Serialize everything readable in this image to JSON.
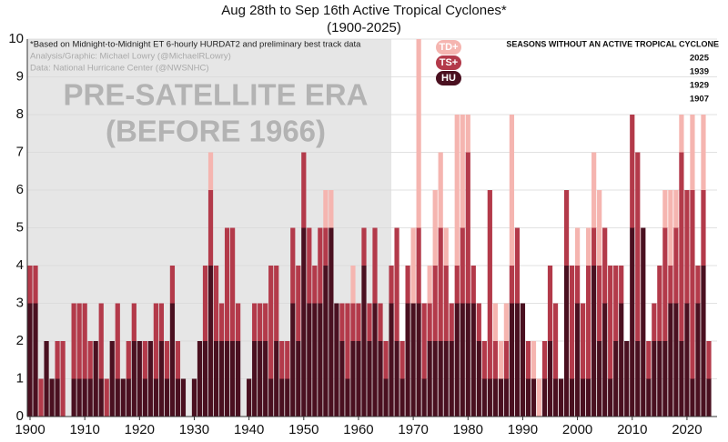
{
  "chart_data": {
    "type": "stacked_bar",
    "title": [
      "Aug 28th to Sep 16th Active Tropical Cyclones*",
      "(1900-2025)"
    ],
    "notes": [
      "*Based on Midnight-to-Midnight ET 6-hourly HURDAT2 and preliminary best track data",
      "Analysis/Graphic: Michael Lowry (@MichaelRLowry)",
      "Data: National Hurricane Center (@NWSNHC)"
    ],
    "annotation": [
      "PRE-SATELLITE ERA",
      "(BEFORE 1966)"
    ],
    "shade_xlim": [
      1899.5,
      1966
    ],
    "empty_seasons": {
      "title": "SEASONS WITHOUT AN ACTIVE TROPICAL CYCLONE",
      "years": [
        "2025",
        "1939",
        "1929",
        "1907"
      ]
    },
    "x": [
      1900,
      1901,
      1902,
      1903,
      1904,
      1905,
      1906,
      1907,
      1908,
      1909,
      1910,
      1911,
      1912,
      1913,
      1914,
      1915,
      1916,
      1917,
      1918,
      1919,
      1920,
      1921,
      1922,
      1923,
      1924,
      1925,
      1926,
      1927,
      1928,
      1929,
      1930,
      1931,
      1932,
      1933,
      1934,
      1935,
      1936,
      1937,
      1938,
      1939,
      1940,
      1941,
      1942,
      1943,
      1944,
      1945,
      1946,
      1947,
      1948,
      1949,
      1950,
      1951,
      1952,
      1953,
      1954,
      1955,
      1956,
      1957,
      1958,
      1959,
      1960,
      1961,
      1962,
      1963,
      1964,
      1965,
      1966,
      1967,
      1968,
      1969,
      1970,
      1971,
      1972,
      1973,
      1974,
      1975,
      1976,
      1977,
      1978,
      1979,
      1980,
      1981,
      1982,
      1983,
      1984,
      1985,
      1986,
      1987,
      1988,
      1989,
      1990,
      1991,
      1992,
      1993,
      1994,
      1995,
      1996,
      1997,
      1998,
      1999,
      2000,
      2001,
      2002,
      2003,
      2004,
      2005,
      2006,
      2007,
      2008,
      2009,
      2010,
      2011,
      2012,
      2013,
      2014,
      2015,
      2016,
      2017,
      2018,
      2019,
      2020,
      2021,
      2022,
      2023,
      2024,
      2025
    ],
    "series": [
      {
        "name": "HU",
        "color": "#4a1020",
        "values": [
          3,
          3,
          0,
          2,
          1,
          1,
          0,
          0,
          1,
          1,
          1,
          1,
          2,
          1,
          0,
          2,
          1,
          1,
          1,
          2,
          2,
          1,
          2,
          1,
          2,
          1,
          3,
          1,
          1,
          0,
          1,
          2,
          2,
          4,
          2,
          2,
          2,
          2,
          2,
          0,
          1,
          2,
          2,
          2,
          1,
          2,
          1,
          1,
          3,
          2,
          5,
          3,
          3,
          3,
          4,
          5,
          3,
          2,
          1,
          2,
          2,
          4,
          2,
          3,
          2,
          1,
          3,
          2,
          1,
          3,
          3,
          3,
          1,
          2,
          2,
          2,
          2,
          2,
          3,
          3,
          3,
          3,
          2,
          1,
          1,
          1,
          1,
          1,
          3,
          3,
          3,
          1,
          1,
          0,
          1,
          2,
          1,
          1,
          4,
          1,
          3,
          1,
          1,
          4,
          2,
          3,
          1,
          2,
          3,
          2,
          5,
          2,
          5,
          1,
          2,
          2,
          2,
          3,
          3,
          2,
          3,
          1,
          3,
          4,
          1,
          0
        ]
      },
      {
        "name": "TS+",
        "color": "#b33a4a",
        "values": [
          1,
          1,
          1,
          0,
          0,
          1,
          2,
          0,
          2,
          2,
          2,
          1,
          0,
          2,
          1,
          0,
          2,
          0,
          1,
          1,
          0,
          1,
          0,
          2,
          1,
          1,
          1,
          1,
          0,
          0,
          0,
          0,
          2,
          2,
          2,
          1,
          3,
          3,
          1,
          0,
          0,
          1,
          1,
          1,
          3,
          2,
          1,
          1,
          2,
          2,
          2,
          2,
          1,
          2,
          1,
          0,
          0,
          1,
          2,
          1,
          1,
          1,
          1,
          2,
          1,
          1,
          1,
          3,
          1,
          1,
          0,
          2,
          2,
          1,
          2,
          3,
          2,
          1,
          1,
          2,
          4,
          1,
          1,
          1,
          5,
          1,
          0,
          1,
          1,
          2,
          0,
          1,
          0,
          0,
          1,
          2,
          2,
          0,
          2,
          3,
          1,
          2,
          3,
          1,
          2,
          2,
          3,
          2,
          1,
          0,
          3,
          5,
          0,
          1,
          1,
          2,
          3,
          1,
          2,
          5,
          3,
          5,
          1,
          2,
          1,
          0
        ]
      },
      {
        "name": "TD+",
        "color": "#f5b5b0",
        "values": [
          0,
          0,
          0,
          0,
          0,
          0,
          0,
          0,
          0,
          0,
          0,
          0,
          0,
          0,
          0,
          0,
          0,
          0,
          0,
          0,
          0,
          0,
          0,
          0,
          0,
          0,
          0,
          0,
          0,
          0,
          0,
          0,
          0,
          1,
          0,
          0,
          0,
          0,
          0,
          0,
          0,
          0,
          0,
          0,
          0,
          0,
          0,
          0,
          0,
          0,
          0,
          0,
          0,
          0,
          1,
          1,
          0,
          0,
          0,
          1,
          0,
          0,
          0,
          0,
          0,
          0,
          0,
          0,
          0,
          0,
          2,
          5,
          0,
          1,
          2,
          2,
          1,
          0,
          4,
          3,
          1,
          0,
          0,
          0,
          0,
          1,
          1,
          1,
          4,
          0,
          0,
          0,
          1,
          1,
          0,
          0,
          0,
          0,
          0,
          0,
          1,
          0,
          1,
          2,
          2,
          0,
          0,
          0,
          0,
          0,
          0,
          0,
          0,
          0,
          0,
          0,
          1,
          2,
          1,
          1,
          0,
          2,
          0,
          2,
          0,
          0
        ]
      }
    ],
    "xlim": [
      1899.5,
      2025.5
    ],
    "xticks": [
      1900,
      1910,
      1920,
      1930,
      1940,
      1950,
      1960,
      1970,
      1980,
      1990,
      2000,
      2010,
      2020
    ],
    "ylim": [
      0,
      10
    ],
    "yticks": [
      0,
      1,
      2,
      3,
      4,
      5,
      6,
      7,
      8,
      9,
      10
    ],
    "grid": true
  }
}
